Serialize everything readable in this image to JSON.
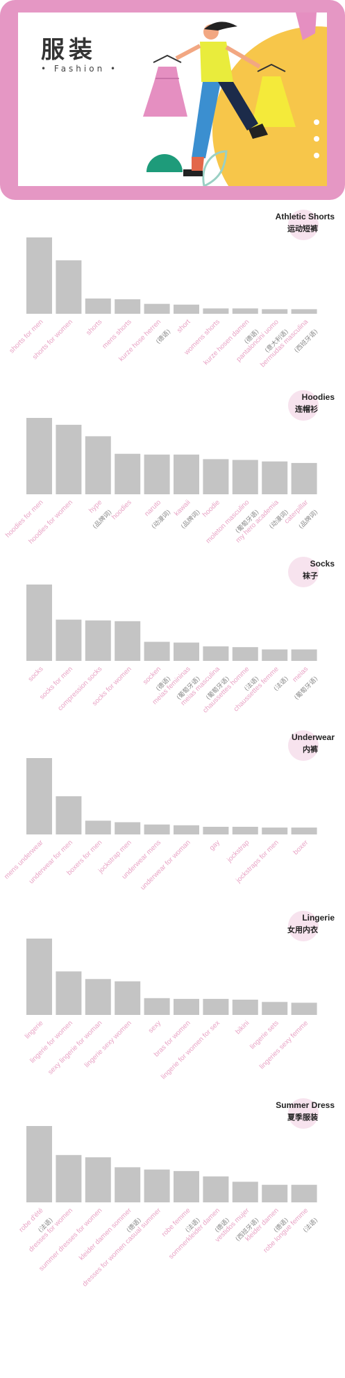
{
  "banner": {
    "title": "服装",
    "subtitle": "• Fashion •"
  },
  "colors": {
    "banner_border": "#e597c4",
    "bar": "#c4c4c4",
    "label": "#e8a3c5",
    "badge": "#f7e3ee",
    "note": "#888888"
  },
  "chart_data": [
    {
      "type": "bar",
      "title": "Athletic Shorts",
      "subtitle": "运动短裤",
      "categories": [
        "shorts for men",
        "shorts for women",
        "shorts",
        "mens shorts",
        "kurze hose herren",
        "short",
        "womens shorts",
        "kurze hosen damen",
        "pantaloncini uomo",
        "bermudas masculina"
      ],
      "notes": [
        "",
        "",
        "",
        "",
        "(德语)",
        "",
        "",
        "(德语)",
        "(意大利语)",
        "(西班牙语)"
      ],
      "values": [
        100,
        70,
        20,
        19,
        13,
        12,
        7,
        7,
        6,
        6
      ],
      "ylim": [
        0,
        100
      ]
    },
    {
      "type": "bar",
      "title": "Hoodies",
      "subtitle": "连帽衫",
      "categories": [
        "hoodies for men",
        "hoodies for women",
        "hype",
        "hoodies",
        "naruto",
        "kawaii",
        "hoodie",
        "moleton masculino",
        "my hero academia",
        "caterpillar"
      ],
      "notes": [
        "",
        "",
        "(品牌词)",
        "",
        "(动漫词)",
        "(品牌词)",
        "",
        "(葡萄牙语)",
        "(动漫词)",
        "(品牌词)"
      ],
      "values": [
        100,
        91,
        76,
        53,
        52,
        52,
        46,
        45,
        43,
        41
      ],
      "ylim": [
        0,
        100
      ]
    },
    {
      "type": "bar",
      "title": "Socks",
      "subtitle": "袜子",
      "categories": [
        "socks",
        "socks for men",
        "compression socks",
        "socks for women",
        "socken",
        "meias femininas",
        "meias masculina",
        "chaussettes homme",
        "chaussettes femme",
        "meias"
      ],
      "notes": [
        "",
        "",
        "",
        "",
        "(德语)",
        "(葡萄牙语)",
        "(葡萄牙语)",
        "(法语)",
        "(法语)",
        "(葡萄牙语)"
      ],
      "values": [
        100,
        54,
        53,
        52,
        25,
        24,
        19,
        18,
        15,
        15
      ],
      "ylim": [
        0,
        100
      ]
    },
    {
      "type": "bar",
      "title": "Underwear",
      "subtitle": "内裤",
      "categories": [
        "mens underwear",
        "underwear for men",
        "boxers for men",
        "jockstrap men",
        "underwear mens",
        "underwear for woman",
        "gay",
        "jockstrap",
        "jockstraps for men",
        "boxer"
      ],
      "notes": [
        "",
        "",
        "",
        "",
        "",
        "",
        "",
        "",
        "",
        ""
      ],
      "values": [
        100,
        50,
        18,
        16,
        13,
        12,
        10,
        10,
        9,
        9
      ],
      "ylim": [
        0,
        100
      ]
    },
    {
      "type": "bar",
      "title": "Lingerie",
      "subtitle": "女用内衣",
      "categories": [
        "lingerie",
        "lingerie for women",
        "sexy lingerie for woman",
        "lingerie sexy women",
        "sexy",
        "bras for women",
        "lingerie for women for sex",
        "bikini",
        "lingerie sets",
        "lingeries sexy femme"
      ],
      "notes": [
        "",
        "",
        "",
        "",
        "",
        "",
        "",
        "",
        "",
        ""
      ],
      "values": [
        100,
        57,
        47,
        44,
        22,
        21,
        21,
        20,
        17,
        16
      ],
      "ylim": [
        0,
        100
      ]
    },
    {
      "type": "bar",
      "title": "Summer Dress",
      "subtitle": "夏季服装",
      "categories": [
        "robe d'été",
        "dresses for women",
        "summer dresses for women",
        "kleider damen sommer",
        "dresses for women casual summer",
        "robe femme",
        "sommerkleider damen",
        "vestidos mujer",
        "kleider damen",
        "robe longue femme"
      ],
      "notes": [
        "(法语)",
        "",
        "",
        "(德语)",
        "",
        "(法语)",
        "(德语)",
        "(西班牙语)",
        "(德语)",
        "(法语)"
      ],
      "values": [
        100,
        62,
        59,
        46,
        43,
        41,
        34,
        27,
        23,
        23
      ],
      "ylim": [
        0,
        100
      ]
    }
  ]
}
